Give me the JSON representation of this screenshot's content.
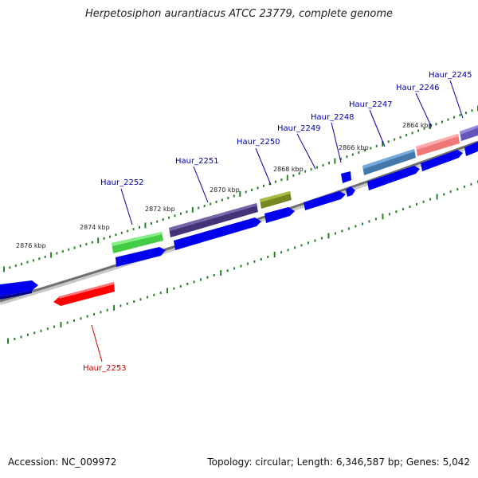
{
  "title": "Herpetosiphon aurantiacus ATCC 23779, complete genome",
  "accession_text": "Accession: NC_009972",
  "summary_text": "Topology: circular; Length: 6,346,587 bp; Genes: 5,042",
  "colors": {
    "backbone": "#808080",
    "cds_strand": "#0000ee",
    "tick": "#2a7f2a",
    "label_blue": "#0000aa",
    "label_red": "#cc0000"
  },
  "kbp_ticks": [
    "2876 kbp",
    "2874 kbp",
    "2872 kbp",
    "2870 kbp",
    "2868 kbp",
    "2866 kbp",
    "2864 kbp"
  ],
  "genes": [
    {
      "label": "Haur_2253",
      "strand": "reverse",
      "color": "#ff0000"
    },
    {
      "label": "Haur_2252",
      "strand": "forward",
      "color": "#44cc44"
    },
    {
      "label": "Haur_2251",
      "strand": "forward",
      "color": "#443377"
    },
    {
      "label": "Haur_2250",
      "strand": "forward",
      "color": "#778822"
    },
    {
      "label": "Haur_2249",
      "strand": "forward",
      "color": "#0000ee"
    },
    {
      "label": "Haur_2248",
      "strand": "forward",
      "color": "#0000ee"
    },
    {
      "label": "Haur_2247",
      "strand": "forward",
      "color": "#4477aa"
    },
    {
      "label": "Haur_2246",
      "strand": "forward",
      "color": "#ee7777"
    },
    {
      "label": "Haur_2245",
      "strand": "forward",
      "color": "#6655bb"
    }
  ]
}
